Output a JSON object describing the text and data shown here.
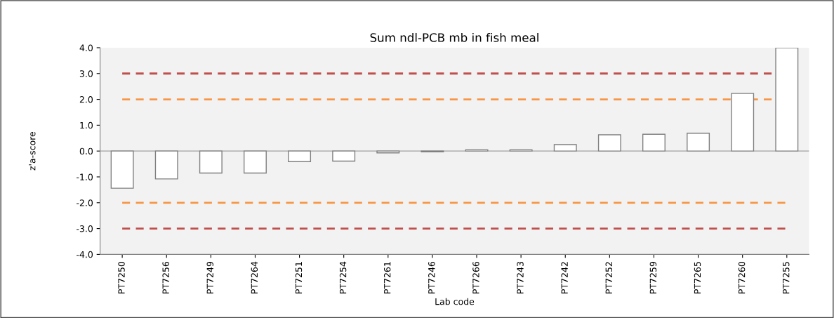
{
  "chart_data": {
    "type": "bar",
    "title": "Sum ndl-PCB mb in fish meal",
    "xlabel": "Lab code",
    "ylabel": "z'a-score",
    "categories": [
      "PT7250",
      "PT7256",
      "PT7249",
      "PT7264",
      "PT7251",
      "PT7254",
      "PT7261",
      "PT7246",
      "PT7266",
      "PT7243",
      "PT7242",
      "PT7252",
      "PT7259",
      "PT7265",
      "PT7260",
      "PT7255"
    ],
    "values": [
      -1.44,
      -1.08,
      -0.85,
      -0.85,
      -0.41,
      -0.39,
      -0.07,
      -0.03,
      0.05,
      0.05,
      0.25,
      0.63,
      0.65,
      0.69,
      2.23,
      4.0
    ],
    "color": "#ffffff",
    "ylim": [
      -4,
      4
    ],
    "yticks": [
      {
        "value": -4,
        "label": "-4.0"
      },
      {
        "value": -3,
        "label": "-3.0"
      },
      {
        "value": -2,
        "label": "-2.0"
      },
      {
        "value": -1,
        "label": "-1.0"
      },
      {
        "value": 0,
        "label": "0.0"
      },
      {
        "value": 1,
        "label": "1.0"
      },
      {
        "value": 2,
        "label": "2.0"
      },
      {
        "value": 3,
        "label": "3.0"
      },
      {
        "value": 4,
        "label": "4.0"
      }
    ],
    "ref_lines": [
      {
        "axis": "y",
        "value": 3,
        "color": "#c0504d",
        "line_style": "dashed"
      },
      {
        "axis": "y",
        "value": 2,
        "color": "#f79646",
        "line_style": "dashed"
      },
      {
        "axis": "y",
        "value": -2,
        "color": "#f79646",
        "line_style": "dashed"
      },
      {
        "axis": "y",
        "value": -3,
        "color": "#c0504d",
        "line_style": "dashed"
      }
    ],
    "grid": false,
    "legend": false
  }
}
